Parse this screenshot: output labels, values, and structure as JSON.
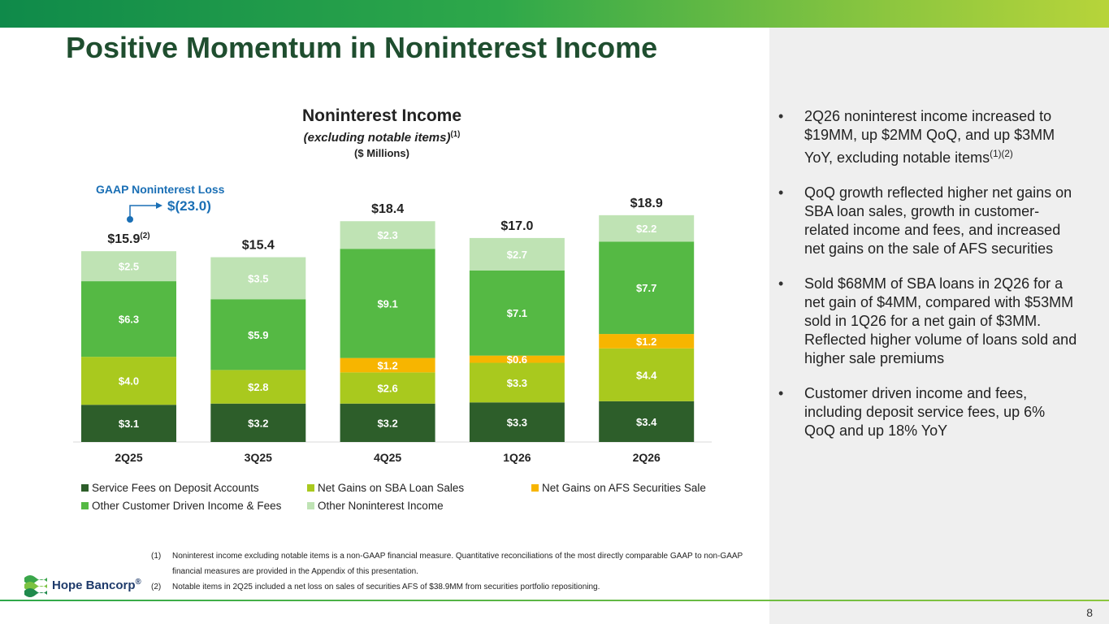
{
  "slide": {
    "title": "Positive Momentum in Noninterest Income",
    "page_number": "8"
  },
  "chart_header": {
    "title": "Noninterest Income",
    "subtitle": "(excluding notable items)",
    "subtitle_sup": "(1)",
    "units": "($ Millions)"
  },
  "gaap_callout": {
    "label": "GAAP Noninterest Loss",
    "value": "$(23.0)"
  },
  "chart_data": {
    "type": "bar",
    "stacked": true,
    "categories": [
      "2Q25",
      "3Q25",
      "4Q25",
      "1Q26",
      "2Q26"
    ],
    "series": [
      {
        "name": "Service Fees on Deposit Accounts",
        "values": [
          3.1,
          3.2,
          3.2,
          3.3,
          3.4
        ],
        "color": "#2d5e2a",
        "label_color": "#ffffff"
      },
      {
        "name": "Net Gains on SBA Loan Sales",
        "values": [
          4.0,
          2.8,
          2.6,
          3.3,
          4.4
        ],
        "color": "#a9c91e",
        "label_color": "#ffffff"
      },
      {
        "name": "Net Gains on AFS Securities Sale",
        "values": [
          null,
          null,
          1.2,
          0.6,
          1.2
        ],
        "color": "#f7b500",
        "label_color": "#ffffff"
      },
      {
        "name": "Other Customer Driven Income & Fees",
        "values": [
          6.3,
          5.9,
          9.1,
          7.1,
          7.7
        ],
        "color": "#55b944",
        "label_color": "#ffffff"
      },
      {
        "name": "Other Noninterest Income",
        "values": [
          2.5,
          3.5,
          2.3,
          2.7,
          2.2
        ],
        "color": "#bfe3b4",
        "label_color": "#ffffff"
      }
    ],
    "value_labels": [
      [
        "$3.1",
        "$3.2",
        "$3.2",
        "$3.3",
        "$3.4"
      ],
      [
        "$4.0",
        "$2.8",
        "$2.6",
        "$3.3",
        "$4.4"
      ],
      [
        "",
        "",
        "$1.2",
        "$0.6",
        "$1.2"
      ],
      [
        "$6.3",
        "$5.9",
        "$9.1",
        "$7.1",
        "$7.7"
      ],
      [
        "$2.5",
        "$3.5",
        "$2.3",
        "$2.7",
        "$2.2"
      ]
    ],
    "totals": [
      15.9,
      15.4,
      18.4,
      17.0,
      18.9
    ],
    "total_labels": [
      "$15.9",
      "$15.4",
      "$18.4",
      "$17.0",
      "$18.9"
    ],
    "total_label_sup": [
      "(2)",
      "",
      "",
      "",
      ""
    ],
    "ylim": [
      0,
      19.5
    ],
    "legend_position": "bottom"
  },
  "bullets": [
    {
      "text": "2Q26 noninterest income increased to $19MM, up $2MM QoQ, and up $3MM YoY, excluding notable items",
      "sup": "(1)(2)"
    },
    {
      "text": "QoQ growth reflected higher net gains on SBA loan sales, growth in customer-related income and fees, and increased net gains on the sale of AFS securities",
      "sup": ""
    },
    {
      "text": "Sold $68MM of SBA loans in 2Q26 for a net gain of $4MM, compared with $53MM sold in 1Q26 for a net gain of $3MM. Reflected higher volume of loans sold and higher sale premiums",
      "sup": ""
    },
    {
      "text": "Customer driven income and fees, including deposit service fees, up 6% QoQ and up 18% YoY",
      "sup": ""
    }
  ],
  "bullet_marker": "•",
  "footnotes": [
    {
      "num": "(1)",
      "text": "Noninterest income excluding notable items is a non-GAAP financial measure. Quantitative reconciliations of the most directly comparable GAAP to non-GAAP financial measures are provided in the Appendix of this presentation."
    },
    {
      "num": "(2)",
      "text": "Notable items in 2Q25 included a net loss on sales of securities AFS of $38.9MM from securities portfolio repositioning."
    }
  ],
  "logo": {
    "text": "Hope Bancorp",
    "mark": "®"
  }
}
